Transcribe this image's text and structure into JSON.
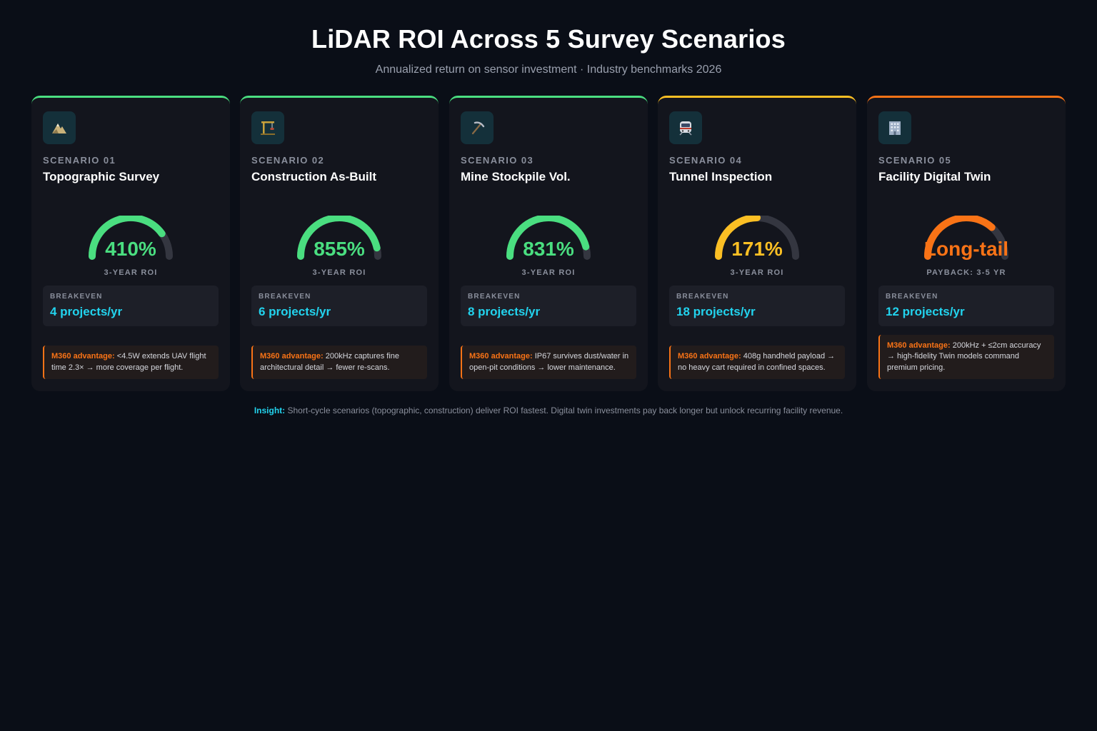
{
  "header": {
    "title": "LiDAR ROI Across 5 Survey Scenarios",
    "subtitle": "Annualized return on sensor investment · Industry benchmarks 2026"
  },
  "colors": {
    "green": "#4ade80",
    "amber": "#fbbf24",
    "orange": "#f97316",
    "cyan": "#22d3ee",
    "track": "#343640"
  },
  "cards": [
    {
      "scenario": "SCENARIO 01",
      "name": "Topographic Survey",
      "icon": "mountain-icon",
      "gauge_fraction": 0.8,
      "color": "#4ade80",
      "value": "410%",
      "value_label": "3-YEAR ROI",
      "breakeven_label": "BREAKEVEN",
      "breakeven_value": "4 projects/yr",
      "adv_label": "M360 advantage:",
      "adv_text": " <4.5W extends UAV flight time 2.3× → more coverage per flight."
    },
    {
      "scenario": "SCENARIO 02",
      "name": "Construction As-Built",
      "icon": "crane-icon",
      "gauge_fraction": 0.93,
      "color": "#4ade80",
      "value": "855%",
      "value_label": "3-YEAR ROI",
      "breakeven_label": "BREAKEVEN",
      "breakeven_value": "6 projects/yr",
      "adv_label": "M360 advantage:",
      "adv_text": " 200kHz captures fine architectural detail → fewer re-scans."
    },
    {
      "scenario": "SCENARIO 03",
      "name": "Mine Stockpile Vol.",
      "icon": "pickaxe-icon",
      "gauge_fraction": 0.92,
      "color": "#4ade80",
      "value": "831%",
      "value_label": "3-YEAR ROI",
      "breakeven_label": "BREAKEVEN",
      "breakeven_value": "8 projects/yr",
      "adv_label": "M360 advantage:",
      "adv_text": " IP67 survives dust/water in open-pit conditions → lower maintenance."
    },
    {
      "scenario": "SCENARIO 04",
      "name": "Tunnel Inspection",
      "icon": "train-icon",
      "gauge_fraction": 0.5,
      "color": "#fbbf24",
      "value": "171%",
      "value_label": "3-YEAR ROI",
      "breakeven_label": "BREAKEVEN",
      "breakeven_value": "18 projects/yr",
      "adv_label": "M360 advantage:",
      "adv_text": " 408g handheld payload → no heavy cart required in confined spaces."
    },
    {
      "scenario": "SCENARIO 05",
      "name": "Facility Digital Twin",
      "icon": "building-icon",
      "gauge_fraction": 0.73,
      "color": "#f97316",
      "value": "Long-tail",
      "value_label": "PAYBACK: 3-5 YR",
      "breakeven_label": "BREAKEVEN",
      "breakeven_value": "12 projects/yr",
      "adv_label": "M360 advantage:",
      "adv_text": " 200kHz + ≤2cm accuracy → high-fidelity Twin models command premium pricing."
    }
  ],
  "insight": {
    "label": "Insight:",
    "text": " Short-cycle scenarios (topographic, construction) deliver ROI fastest. Digital twin investments pay back longer but unlock recurring facility revenue."
  }
}
